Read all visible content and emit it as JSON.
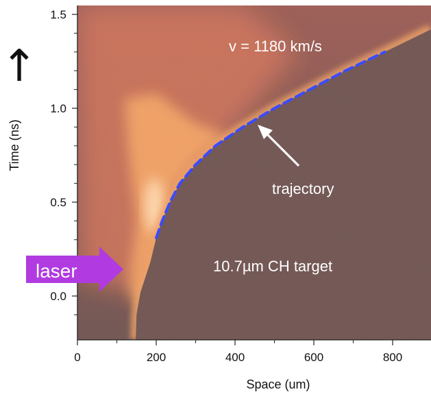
{
  "chart_data": {
    "type": "heatmap",
    "title": "",
    "xlabel": "Space (um)",
    "ylabel": "Time (ns)",
    "xlim": [
      0,
      900
    ],
    "ylim": [
      -0.23,
      1.55
    ],
    "xticks": [
      0,
      200,
      400,
      600,
      800
    ],
    "yticks": [
      0.0,
      0.5,
      1.0,
      1.5
    ],
    "xtick_labels": [
      "0",
      "200",
      "400",
      "600",
      "800"
    ],
    "ytick_labels": [
      "0.0",
      "0.5",
      "1.0",
      "1.5"
    ],
    "grid": false,
    "colormap": [
      "#2a0300",
      "#6a0f05",
      "#b8300c",
      "#ee7a1e",
      "#ffd9a0"
    ],
    "series": [
      {
        "name": "",
        "style": "dashed",
        "color": "#3a4cff",
        "points": [
          {
            "x": 200,
            "y": 0.31
          },
          {
            "x": 215,
            "y": 0.4
          },
          {
            "x": 235,
            "y": 0.5
          },
          {
            "x": 260,
            "y": 0.6
          },
          {
            "x": 300,
            "y": 0.7
          },
          {
            "x": 350,
            "y": 0.8
          },
          {
            "x": 420,
            "y": 0.9
          },
          {
            "x": 500,
            "y": 1.0
          },
          {
            "x": 590,
            "y": 1.1
          },
          {
            "x": 680,
            "y": 1.2
          },
          {
            "x": 780,
            "y": 1.3
          }
        ]
      }
    ],
    "annotations": {
      "velocity": "v = 1180 km/s",
      "trajectory": "trajectory",
      "target": "10.7µm CH target",
      "laser": "laser",
      "time_arrow": "↑"
    }
  }
}
